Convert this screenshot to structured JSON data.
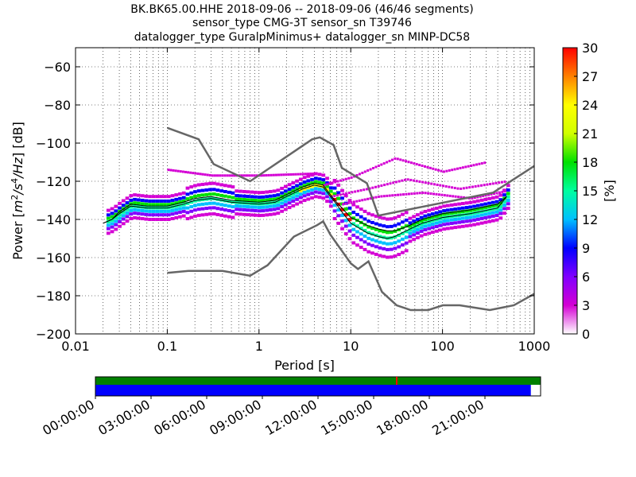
{
  "title_lines": [
    "BK.BK65.00.HHE   2018-09-06 -- 2018-09-06  (46/46 segments)",
    "sensor_type CMG-3T sensor_sn T39746",
    "datalogger_type GuralpMinimus+ datalogger_sn MINP-DC58"
  ],
  "chart_data": {
    "type": "heatmap",
    "xlabel": "Period [s]",
    "ylabel": "Power [m²/s⁴/Hz] [dB]",
    "x_scale": "log",
    "xlim": [
      0.01,
      1000
    ],
    "ylim": [
      -200,
      -50
    ],
    "x_ticks": [
      {
        "value": 0.01,
        "label": "0.01"
      },
      {
        "value": 0.1,
        "label": "0.1"
      },
      {
        "value": 1,
        "label": "1"
      },
      {
        "value": 10,
        "label": "10"
      },
      {
        "value": 100,
        "label": "100"
      },
      {
        "value": 1000,
        "label": "1000"
      }
    ],
    "y_ticks": [
      {
        "value": -60,
        "label": "−60"
      },
      {
        "value": -80,
        "label": "−80"
      },
      {
        "value": -100,
        "label": "−100"
      },
      {
        "value": -120,
        "label": "−120"
      },
      {
        "value": -140,
        "label": "−140"
      },
      {
        "value": -160,
        "label": "−160"
      },
      {
        "value": -180,
        "label": "−180"
      },
      {
        "value": -200,
        "label": "−200"
      }
    ],
    "grid": true,
    "new_high_noise_model": [
      [
        0.1,
        -92
      ],
      [
        0.22,
        -98
      ],
      [
        0.32,
        -111
      ],
      [
        0.8,
        -120
      ],
      [
        3.8,
        -98
      ],
      [
        4.6,
        -97
      ],
      [
        6.5,
        -101
      ],
      [
        8,
        -113
      ],
      [
        15,
        -121
      ],
      [
        20,
        -138
      ],
      [
        354,
        -126
      ],
      [
        1000,
        -112
      ]
    ],
    "new_low_noise_model": [
      [
        0.1,
        -168
      ],
      [
        0.17,
        -167
      ],
      [
        0.4,
        -167
      ],
      [
        0.8,
        -169.5
      ],
      [
        1.24,
        -164
      ],
      [
        2.4,
        -149
      ],
      [
        4.3,
        -143
      ],
      [
        5,
        -141
      ],
      [
        6,
        -148
      ],
      [
        10,
        -163
      ],
      [
        12,
        -166
      ],
      [
        15.6,
        -162
      ],
      [
        21.9,
        -178
      ],
      [
        31.6,
        -185
      ],
      [
        45,
        -187.5
      ],
      [
        70,
        -187.5
      ],
      [
        101,
        -185
      ],
      [
        154,
        -185
      ],
      [
        328,
        -187.5
      ],
      [
        600,
        -185
      ],
      [
        1000,
        -179
      ]
    ],
    "mode_line": [
      [
        0.02,
        -142
      ],
      [
        0.025,
        -140
      ],
      [
        0.03,
        -137
      ],
      [
        0.04,
        -133
      ],
      [
        0.06,
        -134
      ],
      [
        0.1,
        -134
      ],
      [
        0.15,
        -132
      ],
      [
        0.2,
        -130
      ],
      [
        0.3,
        -129
      ],
      [
        0.5,
        -131
      ],
      [
        1,
        -132
      ],
      [
        1.5,
        -131
      ],
      [
        2,
        -128
      ],
      [
        3,
        -124
      ],
      [
        4,
        -122
      ],
      [
        5,
        -123
      ],
      [
        6,
        -128
      ],
      [
        7,
        -132
      ],
      [
        8,
        -136
      ],
      [
        10,
        -142
      ],
      [
        15,
        -147
      ],
      [
        20,
        -149
      ],
      [
        25,
        -150
      ],
      [
        30,
        -149
      ],
      [
        40,
        -146
      ],
      [
        60,
        -142
      ],
      [
        100,
        -139
      ],
      [
        200,
        -137
      ],
      [
        400,
        -134
      ],
      [
        500,
        -128
      ]
    ],
    "mean_line": [
      [
        0.02,
        -142
      ],
      [
        0.025,
        -140
      ],
      [
        0.03,
        -136
      ],
      [
        0.04,
        -132
      ],
      [
        0.06,
        -133
      ],
      [
        0.1,
        -133
      ],
      [
        0.15,
        -131
      ],
      [
        0.2,
        -129
      ],
      [
        0.3,
        -128
      ],
      [
        0.5,
        -130
      ],
      [
        1,
        -131
      ],
      [
        1.5,
        -130
      ],
      [
        2,
        -127
      ],
      [
        3,
        -123
      ],
      [
        4,
        -121
      ],
      [
        5,
        -122
      ],
      [
        6,
        -127
      ],
      [
        7,
        -131
      ],
      [
        8,
        -134
      ],
      [
        10,
        -139
      ],
      [
        15,
        -143
      ],
      [
        20,
        -145
      ],
      [
        25,
        -146
      ],
      [
        30,
        -146
      ],
      [
        40,
        -144
      ],
      [
        60,
        -140
      ],
      [
        100,
        -137
      ],
      [
        200,
        -135
      ],
      [
        400,
        -132
      ],
      [
        500,
        -128
      ]
    ],
    "colorbar": {
      "label": "[%]",
      "min": 0,
      "max": 30,
      "ticks": [
        "0",
        "3",
        "6",
        "9",
        "12",
        "15",
        "18",
        "21",
        "24",
        "27",
        "30"
      ],
      "colors": [
        "#ffffff",
        "#d400d4",
        "#8000ff",
        "#0000ff",
        "#00c0ff",
        "#00ffa0",
        "#00e000",
        "#d0ff00",
        "#ffff00",
        "#ff8000",
        "#ff0000"
      ]
    }
  },
  "coverage": {
    "time_labels": [
      "00:00:00",
      "03:00:00",
      "06:00:00",
      "09:00:00",
      "12:00:00",
      "15:00:00",
      "18:00:00",
      "21:00:00"
    ],
    "data_fraction": 0.978,
    "top_bar_color": "#008000",
    "bottom_bar_color": "#0000ff",
    "marker_fraction": 0.675,
    "marker_color": "#ff0000"
  }
}
